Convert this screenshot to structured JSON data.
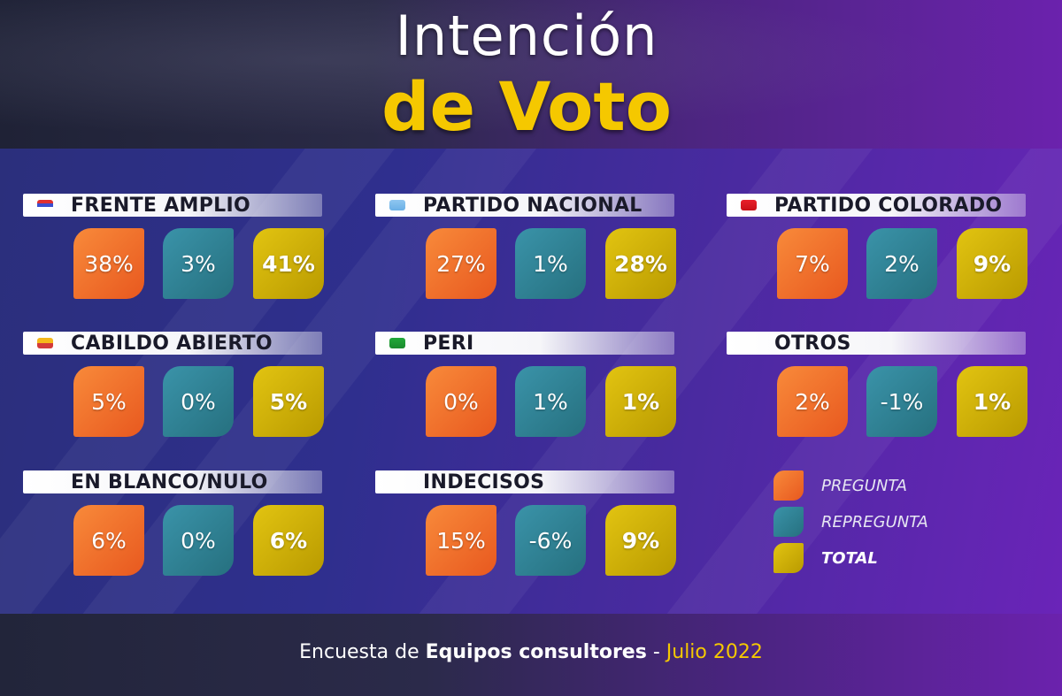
{
  "title": {
    "line1": "Intención",
    "line2": "de Voto"
  },
  "legend": [
    {
      "label": "PREGUNTA",
      "color": "#f26b2c"
    },
    {
      "label": "REPREGUNTA",
      "color": "#2f8399"
    },
    {
      "label": "TOTAL",
      "color": "#d4b200"
    }
  ],
  "footer": {
    "prefix": "Encuesta de ",
    "source": "Equipos consultores",
    "separator": " - ",
    "date": "Julio 2022"
  },
  "chart_data": {
    "type": "table",
    "title": "Intención de Voto",
    "columns": [
      "PREGUNTA",
      "REPREGUNTA",
      "TOTAL"
    ],
    "parties": [
      {
        "name": "FRENTE AMPLIO",
        "flag": "frente-amplio-flag-icon",
        "values": [
          "38%",
          "3%",
          "41%"
        ]
      },
      {
        "name": "PARTIDO NACIONAL",
        "flag": "partido-nacional-flag-icon",
        "values": [
          "27%",
          "1%",
          "28%"
        ]
      },
      {
        "name": "PARTIDO COLORADO",
        "flag": "partido-colorado-flag-icon",
        "values": [
          "7%",
          "2%",
          "9%"
        ]
      },
      {
        "name": "CABILDO ABIERTO",
        "flag": "cabildo-abierto-flag-icon",
        "values": [
          "5%",
          "0%",
          "5%"
        ]
      },
      {
        "name": "PERI",
        "flag": "peri-flag-icon",
        "values": [
          "0%",
          "1%",
          "1%"
        ]
      },
      {
        "name": "OTROS",
        "flag": "",
        "values": [
          "2%",
          "-1%",
          "1%"
        ]
      },
      {
        "name": "EN BLANCO/NULO",
        "flag": "",
        "values": [
          "6%",
          "0%",
          "6%"
        ]
      },
      {
        "name": "INDECISOS",
        "flag": "",
        "values": [
          "15%",
          "-6%",
          "9%"
        ]
      }
    ]
  }
}
